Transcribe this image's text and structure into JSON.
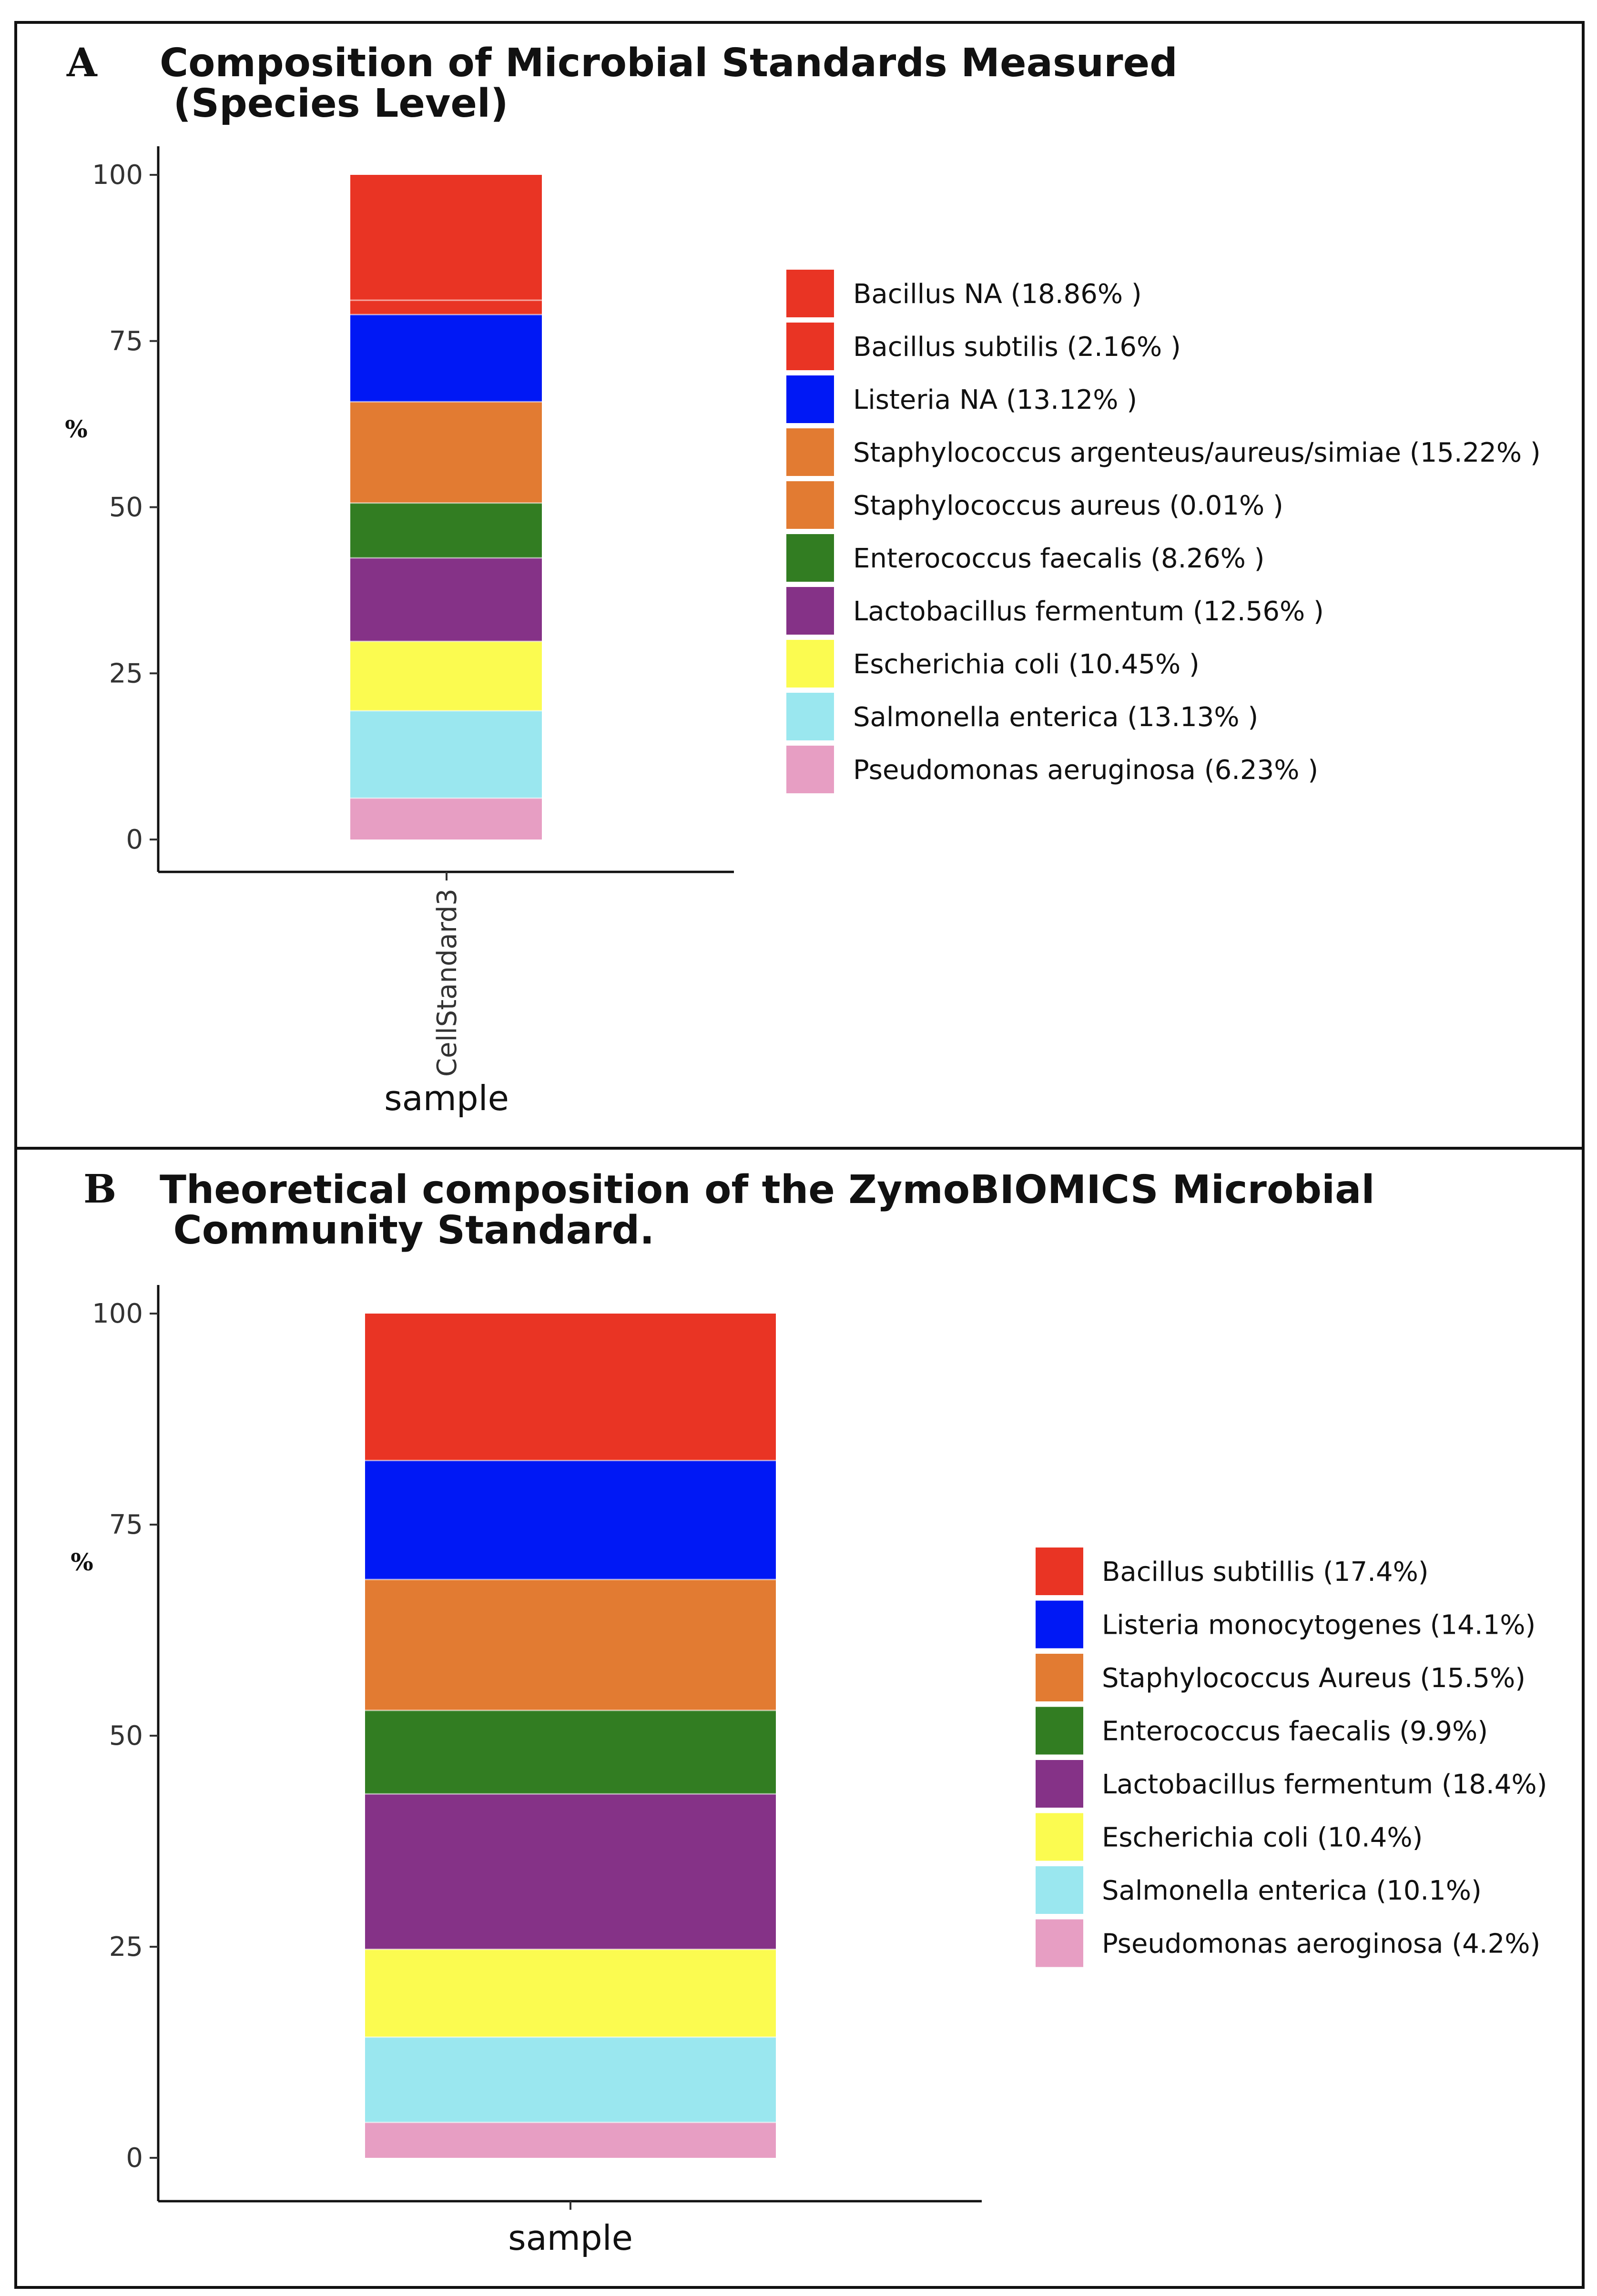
{
  "chart_data": [
    {
      "type": "bar",
      "stacked": true,
      "panel_label": "A",
      "title_lines": [
        "Composition of Microbial Standards Measured",
        " (Species Level)"
      ],
      "ylabel": "%",
      "xlabel": "sample",
      "ylim": [
        0,
        100
      ],
      "yticks": [
        0,
        25,
        50,
        75,
        100
      ],
      "categories": [
        "CellStandard3"
      ],
      "series": [
        {
          "name": "Pseudomonas aeruginosa",
          "value": 6.23,
          "color": "#E79EC3",
          "legend": "Pseudomonas aeruginosa (6.23% )"
        },
        {
          "name": "Salmonella enterica",
          "value": 13.13,
          "color": "#9AE7EF",
          "legend": "Salmonella enterica (13.13% )"
        },
        {
          "name": "Escherichia coli",
          "value": 10.45,
          "color": "#FBFB50",
          "legend": "Escherichia coli (10.45% )"
        },
        {
          "name": "Lactobacillus fermentum",
          "value": 12.56,
          "color": "#853287",
          "legend": "Lactobacillus fermentum (12.56% )"
        },
        {
          "name": "Enterococcus faecalis",
          "value": 8.26,
          "color": "#327D22",
          "legend": "Enterococcus faecalis (8.26% )"
        },
        {
          "name": "Staphylococcus aureus",
          "value": 0.01,
          "color": "#E27B32",
          "legend": "Staphylococcus aureus (0.01% )"
        },
        {
          "name": "Staphylococcus argenteus/aureus/simiae",
          "value": 15.22,
          "color": "#E27B32",
          "legend": "Staphylococcus argenteus/aureus/simiae (15.22% )"
        },
        {
          "name": "Listeria NA",
          "value": 13.12,
          "color": "#0018F5",
          "legend": "Listeria NA (13.12% )"
        },
        {
          "name": "Bacillus subtilis",
          "value": 2.16,
          "color": "#E93424",
          "legend": "Bacillus subtilis (2.16% )"
        },
        {
          "name": "Bacillus NA",
          "value": 18.86,
          "color": "#E93424",
          "legend": "Bacillus NA (18.86% )"
        }
      ],
      "legend_order": [
        "Bacillus NA",
        "Bacillus subtilis",
        "Listeria NA",
        "Staphylococcus argenteus/aureus/simiae",
        "Staphylococcus aureus",
        "Enterococcus faecalis",
        "Lactobacillus fermentum",
        "Escherichia coli",
        "Salmonella enterica",
        "Pseudomonas aeruginosa"
      ]
    },
    {
      "type": "bar",
      "stacked": true,
      "panel_label": "B",
      "title_lines": [
        "Theoretical composition of the ZymoBIOMICS Microbial",
        " Community Standard."
      ],
      "ylabel": "%",
      "xlabel": "sample",
      "ylim": [
        0,
        100
      ],
      "yticks": [
        0,
        25,
        50,
        75,
        100
      ],
      "categories": [
        ""
      ],
      "series": [
        {
          "name": "Pseudomonas aeroginosa",
          "value": 4.2,
          "color": "#E79EC3",
          "legend": "Pseudomonas aeroginosa (4.2%)"
        },
        {
          "name": "Salmonella enterica",
          "value": 10.1,
          "color": "#9AE7EF",
          "legend": "Salmonella enterica (10.1%)"
        },
        {
          "name": "Escherichia coli",
          "value": 10.4,
          "color": "#FBFB50",
          "legend": "Escherichia coli (10.4%)"
        },
        {
          "name": "Lactobacillus fermentum",
          "value": 18.4,
          "color": "#853287",
          "legend": "Lactobacillus fermentum (18.4%)"
        },
        {
          "name": "Enterococcus faecalis",
          "value": 9.9,
          "color": "#327D22",
          "legend": "Enterococcus faecalis (9.9%)"
        },
        {
          "name": "Staphylococcus Aureus",
          "value": 15.5,
          "color": "#E27B32",
          "legend": "Staphylococcus Aureus (15.5%)"
        },
        {
          "name": "Listeria monocytogenes",
          "value": 14.1,
          "color": "#0018F5",
          "legend": "Listeria monocytogenes (14.1%)"
        },
        {
          "name": "Bacillus subtillis",
          "value": 17.4,
          "color": "#E93424",
          "legend": "Bacillus subtillis (17.4%)"
        }
      ],
      "legend_order": [
        "Bacillus subtillis",
        "Listeria monocytogenes",
        "Staphylococcus Aureus",
        "Enterococcus faecalis",
        "Lactobacillus fermentum",
        "Escherichia coli",
        "Salmonella enterica",
        "Pseudomonas aeroginosa"
      ]
    }
  ]
}
